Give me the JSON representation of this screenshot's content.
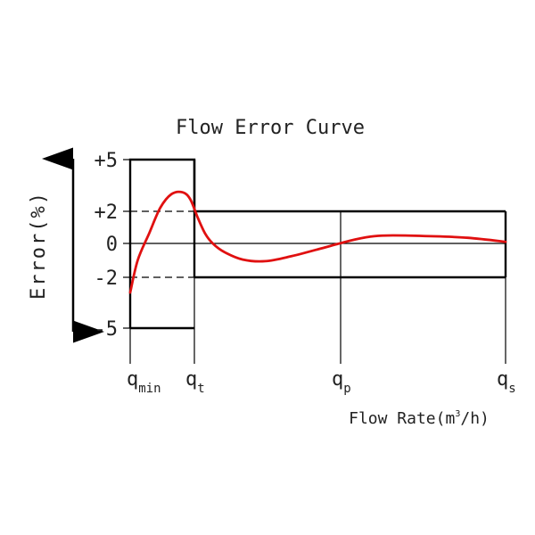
{
  "chart_data": {
    "type": "line",
    "title": "Flow Error Curve",
    "ylabel": "Error(%)",
    "xlabel": "Flow Rate(m³/h)",
    "xlabel_parts": {
      "pre": "Flow Rate(m",
      "sup": "3",
      "post": "/h)"
    },
    "x_ticks": [
      {
        "base": "q",
        "sub": "min"
      },
      {
        "base": "q",
        "sub": "t"
      },
      {
        "base": "q",
        "sub": "p"
      },
      {
        "base": "q",
        "sub": "s"
      }
    ],
    "y_ticks": [
      "+5",
      "+2",
      "0",
      "-2",
      "-5"
    ],
    "y_values": [
      5,
      2,
      0,
      -2,
      -5
    ],
    "ylim": [
      -5,
      5
    ],
    "limits": {
      "low_flow_zone": {
        "from": "qmin",
        "to": "qt",
        "upper": 5,
        "lower": -5
      },
      "high_flow_zone": {
        "from": "qt",
        "to": "qs",
        "upper": 2,
        "lower": -2
      }
    },
    "series": [
      {
        "color": "#e01010",
        "x": [
          0.0,
          0.02,
          0.05,
          0.08,
          0.11,
          0.14,
          0.16,
          0.18,
          0.2,
          0.22,
          0.25,
          0.3,
          0.36,
          0.43,
          0.5,
          0.55,
          0.6,
          0.65,
          0.7,
          0.8,
          0.9,
          1.0
        ],
        "y": [
          -2.9,
          -1.0,
          0.6,
          2.2,
          3.0,
          3.1,
          2.7,
          1.6,
          0.6,
          0.0,
          -0.5,
          -0.95,
          -1.05,
          -0.75,
          -0.35,
          -0.05,
          0.25,
          0.45,
          0.5,
          0.45,
          0.35,
          0.1
        ]
      }
    ]
  }
}
